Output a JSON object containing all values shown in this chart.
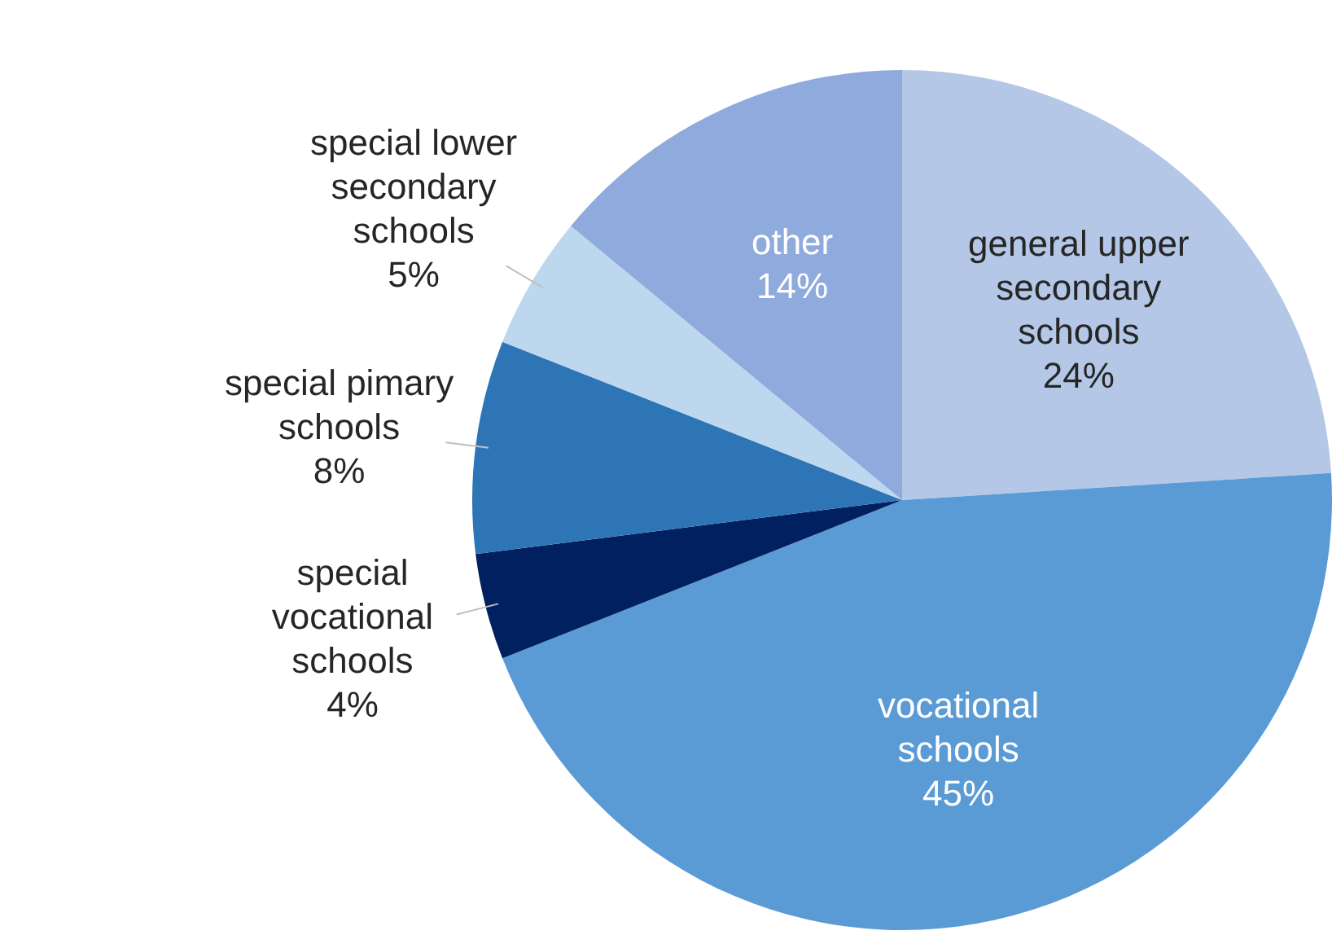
{
  "chart_data": {
    "type": "pie",
    "categories": [
      "general upper secondary schools",
      "vocational schools",
      "special vocational schools",
      "special pimary schools",
      "special lower secondary schools",
      "other"
    ],
    "values": [
      24,
      45,
      4,
      8,
      5,
      14
    ],
    "value_labels": [
      "24%",
      "45%",
      "4%",
      "8%",
      "5%",
      "14%"
    ],
    "colors": [
      "#b4c7e7",
      "#5b9bd5",
      "#002060",
      "#2e75b6",
      "#bdd7ee",
      "#8faadc"
    ],
    "legend": false
  }
}
